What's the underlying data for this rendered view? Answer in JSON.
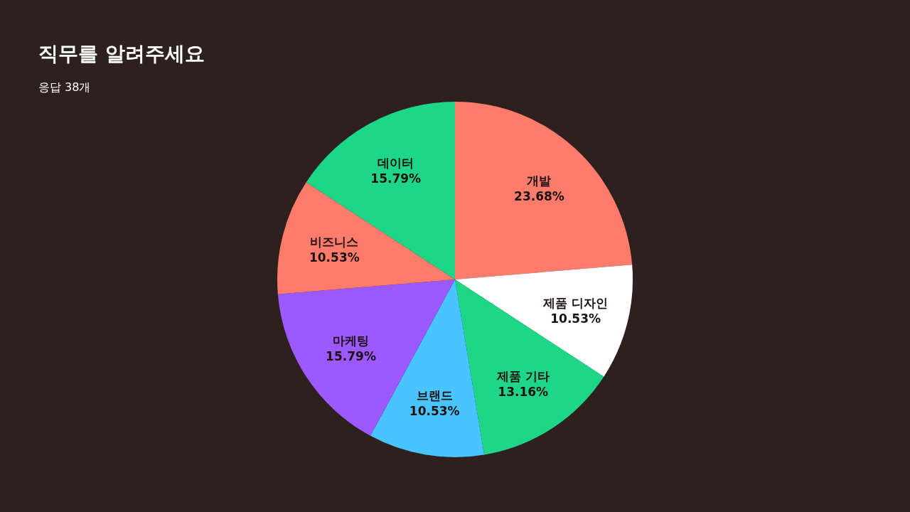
{
  "chart_data": {
    "type": "pie",
    "title": "직무를 알려주세요",
    "subtitle": "응답 38개",
    "categories": [
      "개발",
      "제품 디자인",
      "제품 기타",
      "브랜드",
      "마케팅",
      "비즈니스",
      "데이터"
    ],
    "values": [
      23.68,
      10.53,
      13.16,
      10.53,
      15.79,
      10.53,
      15.79
    ],
    "value_labels": [
      "23.68%",
      "10.53%",
      "13.16%",
      "10.53%",
      "15.79%",
      "10.53%",
      "15.79%"
    ],
    "colors": [
      "#ff7b6b",
      "#ffffff",
      "#1ed688",
      "#48c4ff",
      "#9b59ff",
      "#ff7b6b",
      "#1ed688"
    ]
  }
}
